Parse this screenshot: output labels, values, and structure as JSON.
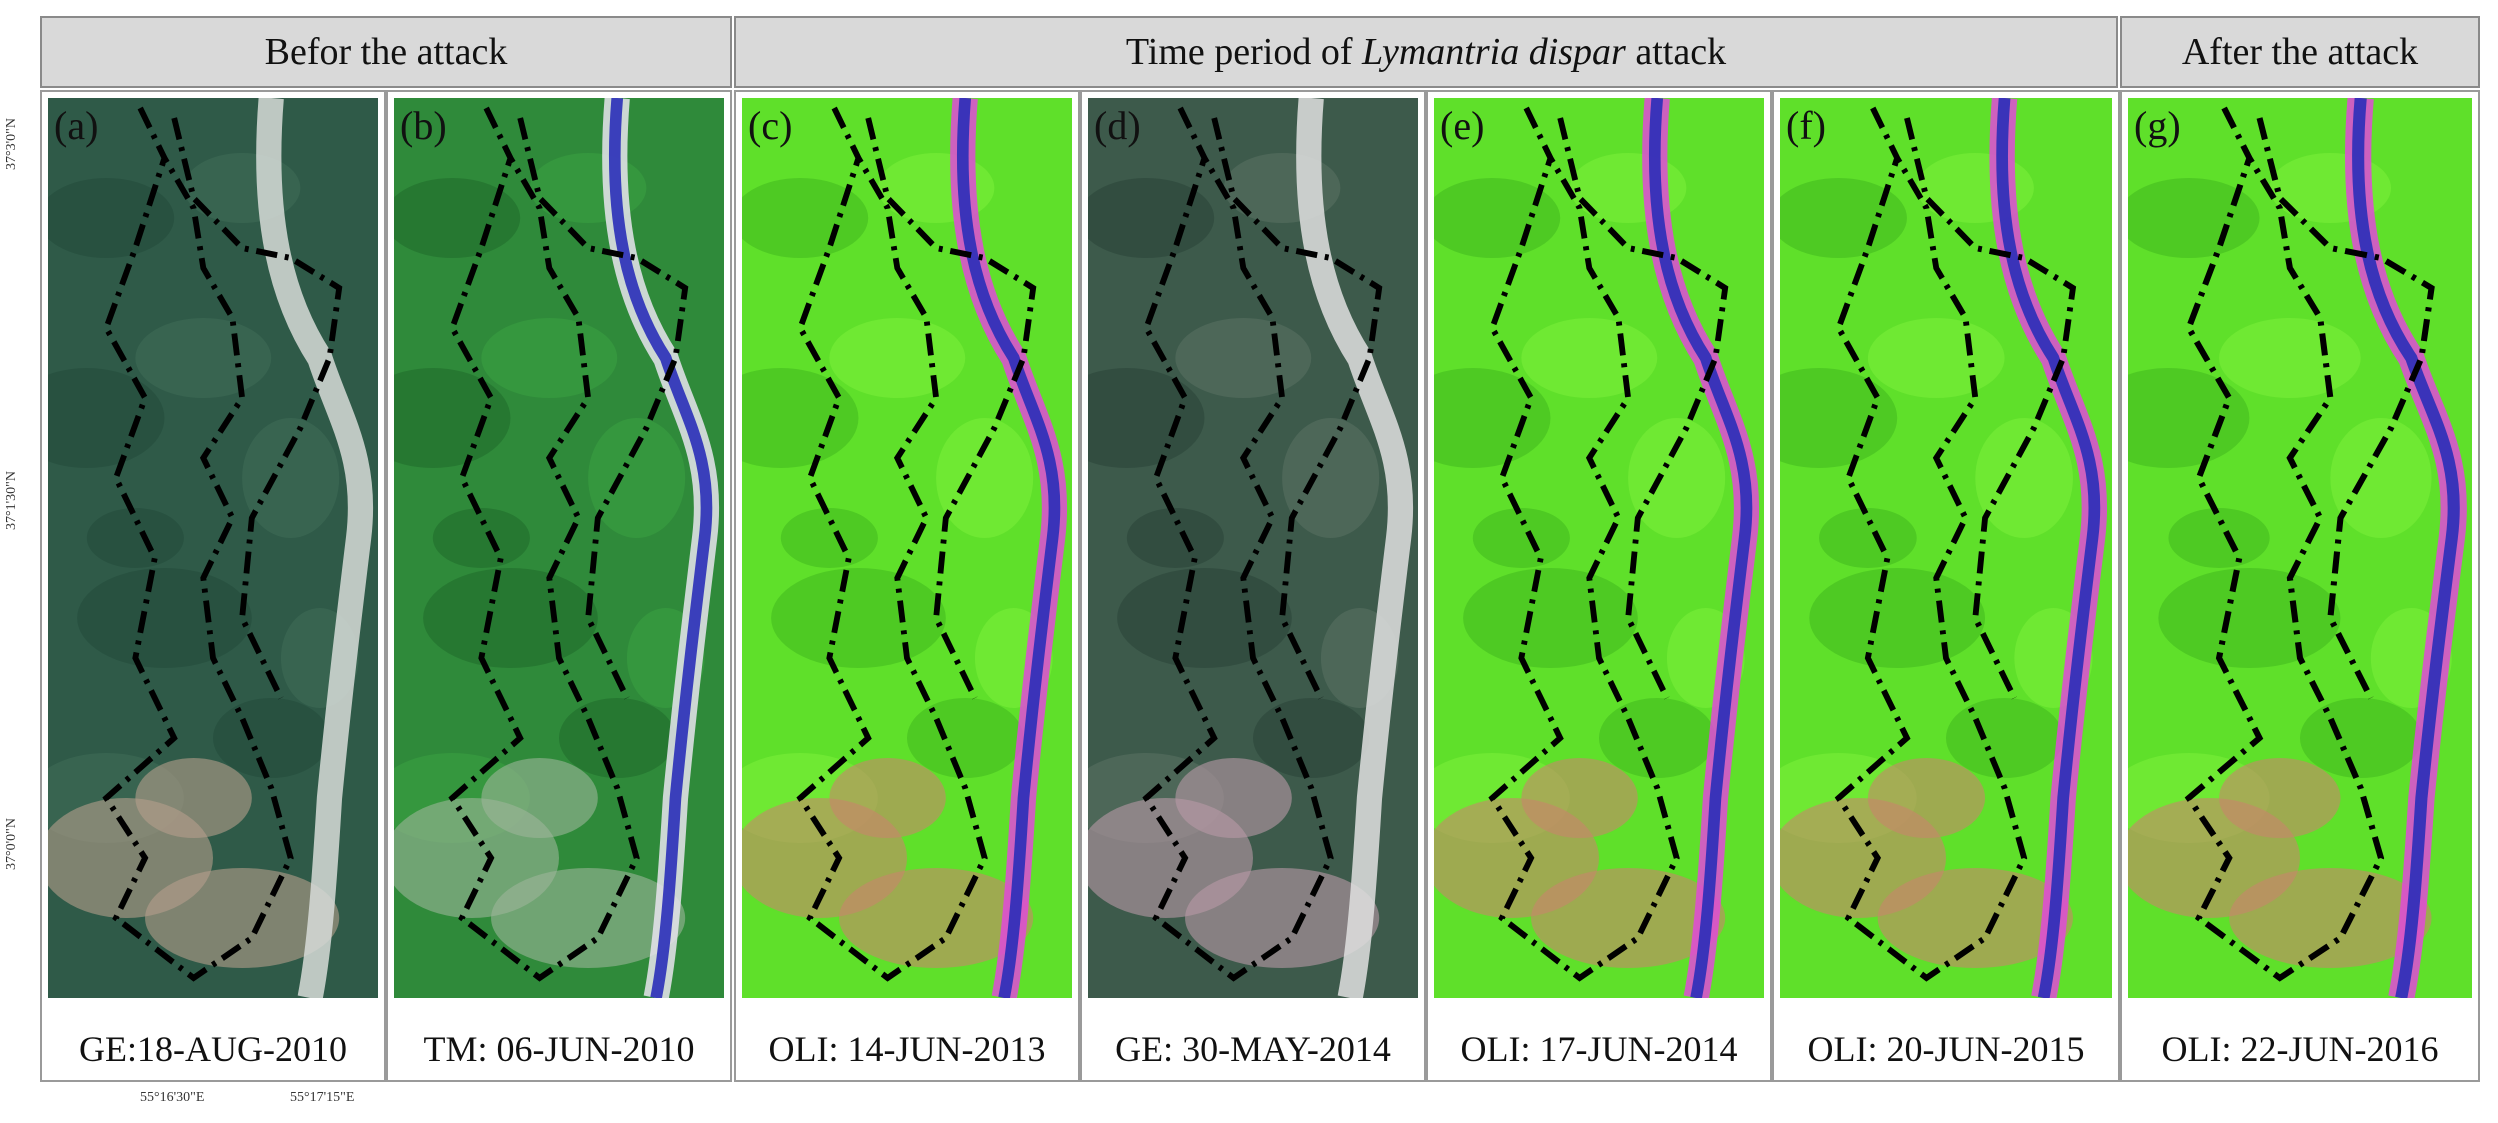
{
  "headers": {
    "before": "Befor the attack",
    "during_prefix": "Time period of ",
    "during_italic": "Lymantria dispar",
    "during_suffix": " attack",
    "after": "After the attack"
  },
  "panels": [
    {
      "label": "(a)",
      "date": "GE:18-AUG-2010",
      "style": "ge"
    },
    {
      "label": "(b)",
      "date": "TM: 06-JUN-2010",
      "style": "tm"
    },
    {
      "label": "(c)",
      "date": "OLI: 14-JUN-2013",
      "style": "oli"
    },
    {
      "label": "(d)",
      "date": "GE: 30-MAY-2014",
      "style": "ge2"
    },
    {
      "label": "(e)",
      "date": "OLI: 17-JUN-2014",
      "style": "oli"
    },
    {
      "label": "(f)",
      "date": "OLI: 20-JUN-2015",
      "style": "oli"
    },
    {
      "label": "(g)",
      "date": "OLI: 22-JUN-2016",
      "style": "oli"
    }
  ],
  "latitudes": [
    "37°3'0\"N",
    "37°1'30\"N",
    "37°0'0\"N"
  ],
  "longitudes": [
    "55°16'30\"E",
    "55°17'15\"E"
  ],
  "colors": {
    "ge_forest": "#2f5a48",
    "tm_forest": "#2f8a3a",
    "oli_forest": "#5fe02a",
    "river_blue": "#2a2fb8",
    "damage_magenta": "#e04ad8",
    "boundary": "#000000"
  }
}
